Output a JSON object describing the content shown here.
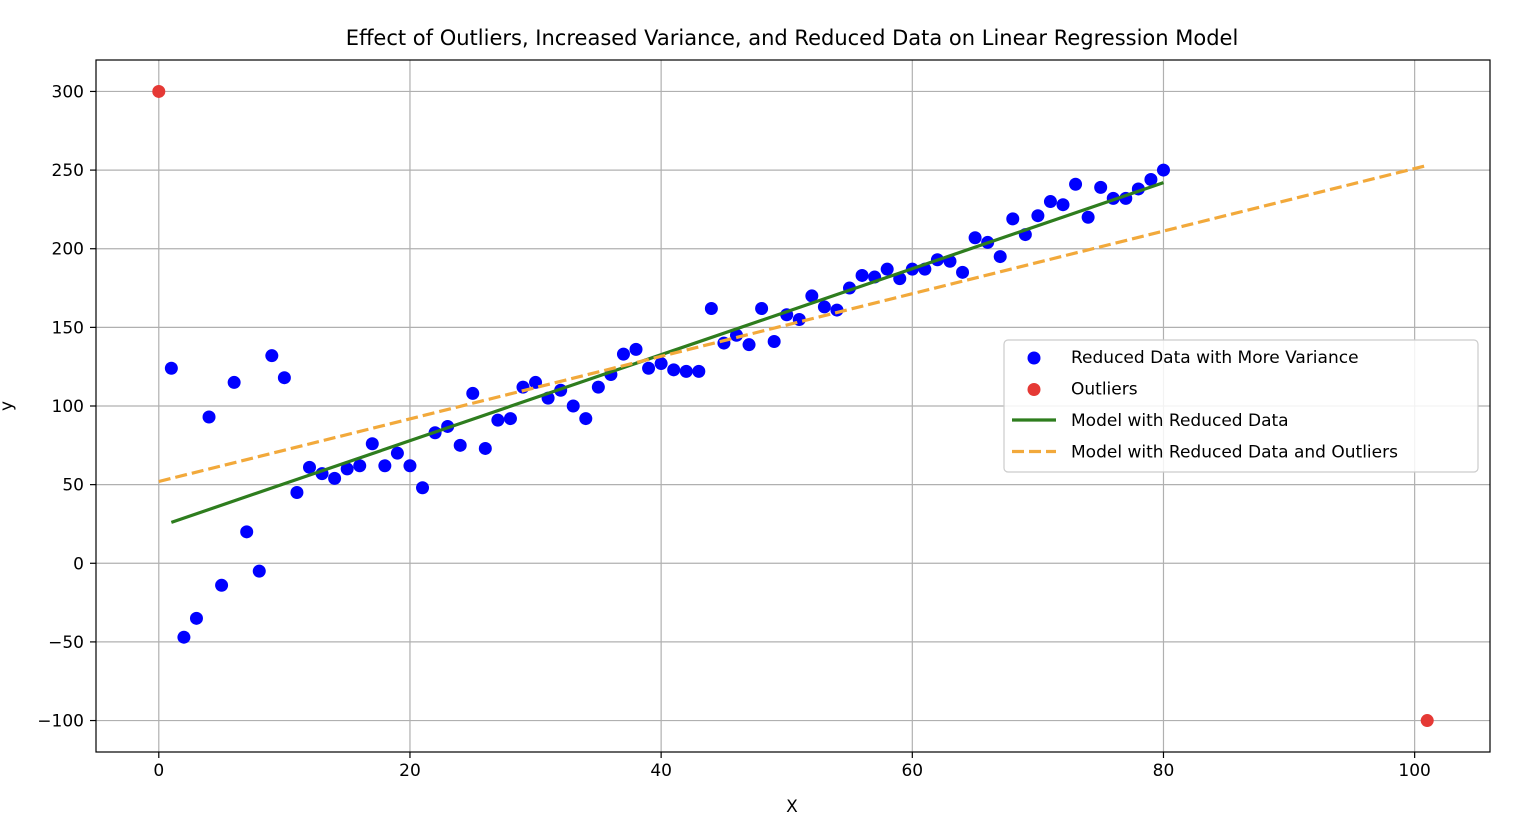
{
  "chart_data": {
    "type": "scatter",
    "title": "Effect of Outliers, Increased Variance, and Reduced Data on Linear Regression Model",
    "xlabel": "X",
    "ylabel": "y",
    "xlim": [
      -5,
      106
    ],
    "ylim": [
      -120,
      320
    ],
    "xticks": [
      0,
      20,
      40,
      60,
      80,
      100
    ],
    "yticks": [
      -100,
      -50,
      0,
      50,
      100,
      150,
      200,
      250,
      300
    ],
    "grid": true,
    "legend_position": "center-right",
    "series": [
      {
        "name": "Reduced Data with More Variance",
        "kind": "scatter",
        "color": "#0000ff",
        "x": [
          1,
          2,
          3,
          4,
          5,
          6,
          7,
          8,
          9,
          10,
          11,
          12,
          13,
          14,
          15,
          16,
          17,
          18,
          19,
          20,
          21,
          22,
          23,
          24,
          25,
          26,
          27,
          28,
          29,
          30,
          31,
          32,
          33,
          34,
          35,
          36,
          37,
          38,
          39,
          40,
          41,
          42,
          43,
          44,
          45,
          46,
          47,
          48,
          49,
          50,
          51,
          52,
          53,
          54,
          55,
          56,
          57,
          58,
          59,
          60,
          61,
          62,
          63,
          64,
          65,
          66,
          67,
          68,
          69,
          70,
          71,
          72,
          73,
          74,
          75,
          76,
          77,
          78,
          79,
          80
        ],
        "y": [
          124,
          -47,
          -35,
          93,
          -14,
          115,
          20,
          -5,
          132,
          118,
          45,
          61,
          57,
          54,
          60,
          62,
          76,
          62,
          70,
          62,
          48,
          83,
          87,
          75,
          108,
          73,
          91,
          92,
          112,
          115,
          105,
          110,
          100,
          92,
          112,
          120,
          133,
          136,
          124,
          127,
          123,
          122,
          122,
          162,
          140,
          145,
          139,
          162,
          141,
          158,
          155,
          170,
          163,
          161,
          175,
          183,
          182,
          187,
          181,
          187,
          187,
          193,
          192,
          185,
          207,
          204,
          195,
          219,
          209,
          221,
          230,
          228,
          241,
          220,
          239,
          232,
          232,
          238,
          244,
          250
        ]
      },
      {
        "name": "Outliers",
        "kind": "scatter",
        "color": "#e53935",
        "x": [
          0,
          101
        ],
        "y": [
          300,
          -100
        ]
      },
      {
        "name": "Model with Reduced Data",
        "kind": "line",
        "color": "#2e7d1e",
        "dash": "solid",
        "x": [
          1,
          80
        ],
        "y": [
          26,
          242
        ]
      },
      {
        "name": "Model with Reduced Data and Outliers",
        "kind": "line",
        "color": "#f2a93b",
        "dash": "dashed",
        "x": [
          0,
          101
        ],
        "y": [
          52,
          253
        ]
      }
    ]
  }
}
